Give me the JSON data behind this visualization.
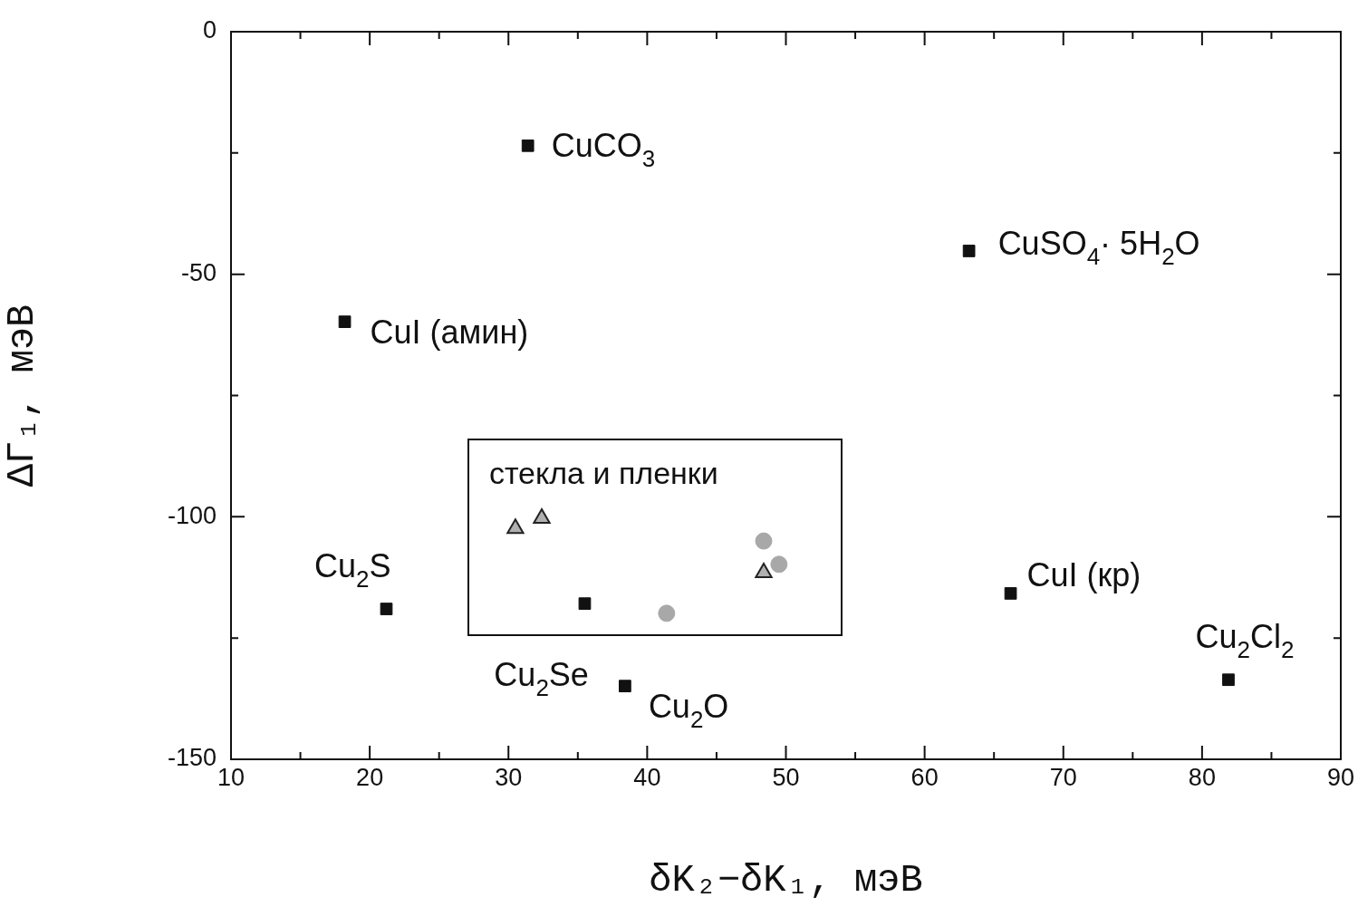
{
  "chart_data": {
    "type": "scatter",
    "xlabel": "δK₂−δK₁, мэВ",
    "ylabel": "ΔΓ₁, мэВ",
    "xlim": [
      10,
      90
    ],
    "xticks": [
      10,
      {
        "value": 15,
        "label": null
      },
      20,
      {
        "value": 25,
        "label": null
      },
      30,
      {
        "value": 35,
        "label": null
      },
      40,
      {
        "value": 45,
        "label": null
      },
      50,
      {
        "value": 55,
        "label": null
      },
      60,
      {
        "value": 65,
        "label": null
      },
      70,
      {
        "value": 75,
        "label": null
      },
      80,
      {
        "value": 85,
        "label": null
      },
      90
    ],
    "ylim": [
      -150,
      0
    ],
    "yticks": [
      -150,
      {
        "value": -125,
        "label": null
      },
      -100,
      {
        "value": -75,
        "label": null
      },
      -50,
      {
        "value": -25,
        "label": null
      },
      0
    ],
    "grid": false,
    "legend": false,
    "series": [
      {
        "color": "#111111",
        "marker": "square",
        "x": [
          31.4,
          63.2,
          18.2,
          21.2,
          35.5,
          38.4,
          66.2,
          81.9
        ],
        "values": [
          -23.5,
          -45.2,
          -59.8,
          -119,
          -117.9,
          -134.9,
          -115.8,
          -133.6
        ]
      },
      {
        "color": "#b0b0b0",
        "marker": "triangle",
        "x": [
          30.5,
          32.4,
          48.4
        ],
        "values": [
          -102.4,
          -100.3,
          -111.5
        ]
      },
      {
        "color": "#a8a8a8",
        "marker": "circle",
        "x": [
          48.4,
          49.5,
          41.4
        ],
        "values": [
          -105,
          -109.8,
          -119.9
        ]
      }
    ],
    "annotations": [
      {
        "text": "CuCO$_{3}$",
        "x": 31.4,
        "y": -23.5
      },
      {
        "text": "CuSO$_{4}$· 5H$_{2}$O",
        "x": 63.2,
        "y": -45.2
      },
      {
        "text": "CuI (амин)",
        "x": 18.2,
        "y": -59.8
      },
      {
        "text": "Cu$_{2}$S",
        "x": 21.2,
        "y": -119
      },
      {
        "text": "Cu$_{2}$O",
        "x": 38.4,
        "y": -134.9
      },
      {
        "text": "Cu$_{2}$Se",
        "x": 38.4,
        "y": -134.9
      },
      {
        "text": "CuI (кр)",
        "x": 66.2,
        "y": -115.8
      },
      {
        "text": "Cu$_{2}$Cl$_{2}$",
        "x": 81.9,
        "y": -133.6
      },
      "стекла и пленки"
    ]
  }
}
